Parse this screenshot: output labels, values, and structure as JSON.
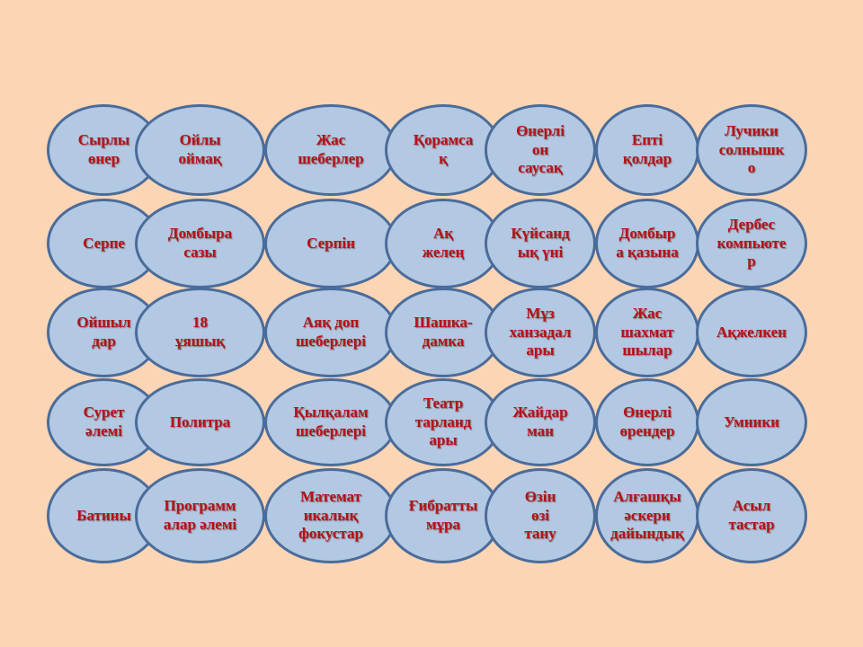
{
  "colors": {
    "background": "#fcd5b4",
    "oval_fill": "#b3c8e2",
    "oval_border": "#4a6c9b",
    "label_text": "#b5121b"
  },
  "board": {
    "rows": [
      {
        "cells": [
          {
            "label": "Сырлы\nөнер"
          },
          {
            "label": "Ойлы\nоймақ"
          },
          {
            "label": "Жас\nшеберлер"
          },
          {
            "label": "Қорамса\nқ"
          },
          {
            "label": "Өнерлі\nон\nсаусақ"
          },
          {
            "label": "Епті\nқолдар"
          },
          {
            "label": "Лучики\nсолнышк\nо"
          }
        ]
      },
      {
        "cells": [
          {
            "label": "Серпе"
          },
          {
            "label": "Домбыра\nсазы"
          },
          {
            "label": "Серпін"
          },
          {
            "label": "Ақ\nжелең"
          },
          {
            "label": "Күйсанд\nық үні"
          },
          {
            "label": "Домбыр\nа қазына"
          },
          {
            "label": "Дербес\nкомпьюте\nр"
          }
        ]
      },
      {
        "cells": [
          {
            "label": "Ойшыл\nдар"
          },
          {
            "label": "18\nұяшық"
          },
          {
            "label": "Аяқ доп\nшеберлері"
          },
          {
            "label": "Шашка-\nдамка"
          },
          {
            "label": "Мұз\nханзадал\nары"
          },
          {
            "label": "Жас\nшахмат\nшылар"
          },
          {
            "label": "Ақжелкен"
          }
        ]
      },
      {
        "cells": [
          {
            "label": "Сурет\nәлемі"
          },
          {
            "label": "Политра"
          },
          {
            "label": "Қылқалам\nшеберлері"
          },
          {
            "label": "Театр\nтарланд\nары"
          },
          {
            "label": "Жайдар\nман"
          },
          {
            "label": "Өнерлі\nөрендер"
          },
          {
            "label": "Умники"
          }
        ]
      },
      {
        "cells": [
          {
            "label": "Батины"
          },
          {
            "label": "Программ\nалар әлемі"
          },
          {
            "label": "Математ\nикалық\nфокустар"
          },
          {
            "label": "Ғибратты\nмұра"
          },
          {
            "label": "Өзін\nөзі\nтану"
          },
          {
            "label": "Алғашқы\nәскери\nдайындық"
          },
          {
            "label": "Асыл\nтастар"
          }
        ]
      }
    ]
  }
}
